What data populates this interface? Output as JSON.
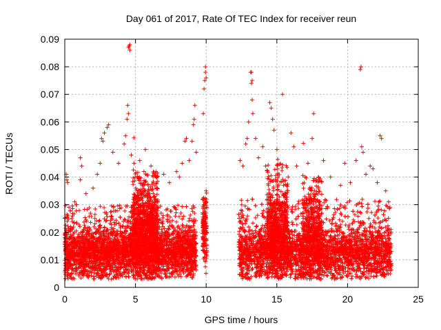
{
  "chart_data": {
    "type": "scatter",
    "title": "Day 061 of 2017, Rate Of TEC Index for receiver reun",
    "xlabel": "GPS time / hours",
    "ylabel": "ROTI / TECUs",
    "xlim": [
      0,
      25
    ],
    "ylim": [
      0,
      0.09
    ],
    "x_ticks": [
      "0",
      "5",
      "10",
      "15",
      "20",
      "25"
    ],
    "y_ticks": [
      "0",
      "0.01",
      "0.02",
      "0.03",
      "0.04",
      "0.05",
      "0.06",
      "0.07",
      "0.08",
      "0.09"
    ],
    "x_tick_values": [
      0,
      5,
      10,
      15,
      20,
      25
    ],
    "y_tick_values": [
      0,
      0.01,
      0.02,
      0.03,
      0.04,
      0.05,
      0.06,
      0.07,
      0.08,
      0.09
    ],
    "grid": true,
    "legend": "none",
    "marker": "plus",
    "color": "#ff0000",
    "series": [
      {
        "points": [
          [
            0.1,
            0.041
          ],
          [
            0.15,
            0.039
          ],
          [
            0.2,
            0.038
          ],
          [
            0.3,
            0.029
          ],
          [
            0.5,
            0.025
          ],
          [
            0.7,
            0.031
          ],
          [
            1.1,
            0.047
          ],
          [
            1.2,
            0.044
          ],
          [
            1.1,
            0.039
          ],
          [
            1.5,
            0.034
          ],
          [
            2.0,
            0.036
          ],
          [
            2.3,
            0.041
          ],
          [
            2.5,
            0.045
          ],
          [
            2.6,
            0.054
          ],
          [
            2.7,
            0.053
          ],
          [
            2.8,
            0.056
          ],
          [
            3.1,
            0.059
          ],
          [
            3.0,
            0.058
          ],
          [
            3.4,
            0.049
          ],
          [
            3.8,
            0.045
          ],
          [
            4.2,
            0.052
          ],
          [
            4.3,
            0.055
          ],
          [
            4.4,
            0.061
          ],
          [
            4.45,
            0.066
          ],
          [
            4.5,
            0.063
          ],
          [
            4.5,
            0.087
          ],
          [
            4.6,
            0.088
          ],
          [
            4.6,
            0.086
          ],
          [
            4.55,
            0.0875
          ],
          [
            4.7,
            0.048
          ],
          [
            4.9,
            0.045
          ],
          [
            5.3,
            0.046
          ],
          [
            5.6,
            0.042
          ],
          [
            5.7,
            0.05
          ],
          [
            6.1,
            0.044
          ],
          [
            6.5,
            0.04
          ],
          [
            7.0,
            0.041
          ],
          [
            7.4,
            0.038
          ],
          [
            7.9,
            0.042
          ],
          [
            8.1,
            0.04
          ],
          [
            8.3,
            0.045
          ],
          [
            8.5,
            0.053
          ],
          [
            8.6,
            0.054
          ],
          [
            8.8,
            0.046
          ],
          [
            9.0,
            0.053
          ],
          [
            9.1,
            0.059
          ],
          [
            9.15,
            0.061
          ],
          [
            9.2,
            0.066
          ],
          [
            9.3,
            0.049
          ],
          [
            9.8,
            0.063
          ],
          [
            9.85,
            0.072
          ],
          [
            9.9,
            0.075
          ],
          [
            9.95,
            0.078
          ],
          [
            9.95,
            0.08
          ],
          [
            10.0,
            0.076
          ],
          [
            10.0,
            0.035
          ],
          [
            9.9,
            0.022
          ],
          [
            9.95,
            0.017
          ],
          [
            10.0,
            0.012
          ],
          [
            12.4,
            0.046
          ],
          [
            12.6,
            0.044
          ],
          [
            12.8,
            0.052
          ],
          [
            12.9,
            0.054
          ],
          [
            13.0,
            0.06
          ],
          [
            13.15,
            0.078
          ],
          [
            13.2,
            0.078
          ],
          [
            13.25,
            0.075
          ],
          [
            13.2,
            0.074
          ],
          [
            13.25,
            0.068
          ],
          [
            13.3,
            0.063
          ],
          [
            13.5,
            0.054
          ],
          [
            13.7,
            0.047
          ],
          [
            14.0,
            0.051
          ],
          [
            14.2,
            0.044
          ],
          [
            14.5,
            0.067
          ],
          [
            14.6,
            0.065
          ],
          [
            14.7,
            0.061
          ],
          [
            14.8,
            0.057
          ],
          [
            15.0,
            0.05
          ],
          [
            15.4,
            0.07
          ],
          [
            15.8,
            0.04
          ],
          [
            16.0,
            0.056
          ],
          [
            16.2,
            0.051
          ],
          [
            16.4,
            0.044
          ],
          [
            17.0,
            0.04
          ],
          [
            17.2,
            0.045
          ],
          [
            17.5,
            0.054
          ],
          [
            17.6,
            0.063
          ],
          [
            17.8,
            0.039
          ],
          [
            18.3,
            0.046
          ],
          [
            18.8,
            0.04
          ],
          [
            19.5,
            0.037
          ],
          [
            19.8,
            0.045
          ],
          [
            20.2,
            0.038
          ],
          [
            20.6,
            0.046
          ],
          [
            20.9,
            0.079
          ],
          [
            20.95,
            0.08
          ],
          [
            21.0,
            0.051
          ],
          [
            21.1,
            0.049
          ],
          [
            21.3,
            0.041
          ],
          [
            21.6,
            0.044
          ],
          [
            21.8,
            0.043
          ],
          [
            22.1,
            0.038
          ],
          [
            22.3,
            0.055
          ],
          [
            22.4,
            0.054
          ],
          [
            22.7,
            0.035
          ],
          [
            22.9,
            0.031
          ],
          [
            23.0,
            0.029
          ],
          [
            1.6,
            0.006
          ],
          [
            3.3,
            0.003
          ],
          [
            5.1,
            0.005
          ],
          [
            7.2,
            0.004
          ],
          [
            8.9,
            0.006
          ],
          [
            13.5,
            0.005
          ],
          [
            15.1,
            0.004
          ],
          [
            17.4,
            0.005
          ],
          [
            19.2,
            0.006
          ],
          [
            21.5,
            0.005
          ],
          [
            22.8,
            0.006
          ]
        ]
      }
    ],
    "density_blocks": [
      {
        "x0": 0.0,
        "x1": 9.3,
        "center": 0.0125,
        "base_spread": 0.0045,
        "hi_level": 0.03,
        "hi_prob": 0.12,
        "count": 3200
      },
      {
        "x0": 4.8,
        "x1": 6.6,
        "center": 0.02,
        "base_spread": 0.008,
        "hi_level": 0.042,
        "hi_prob": 0.18,
        "count": 900
      },
      {
        "x0": 9.75,
        "x1": 10.05,
        "center": 0.02,
        "base_spread": 0.006,
        "hi_level": 0.035,
        "hi_prob": 0.1,
        "count": 150
      },
      {
        "x0": 12.3,
        "x1": 23.1,
        "center": 0.0125,
        "base_spread": 0.0045,
        "hi_level": 0.032,
        "hi_prob": 0.12,
        "count": 3600
      },
      {
        "x0": 14.3,
        "x1": 15.8,
        "center": 0.02,
        "base_spread": 0.008,
        "hi_level": 0.045,
        "hi_prob": 0.15,
        "count": 700
      },
      {
        "x0": 16.8,
        "x1": 18.2,
        "center": 0.018,
        "base_spread": 0.008,
        "hi_level": 0.04,
        "hi_prob": 0.15,
        "count": 500
      }
    ]
  }
}
